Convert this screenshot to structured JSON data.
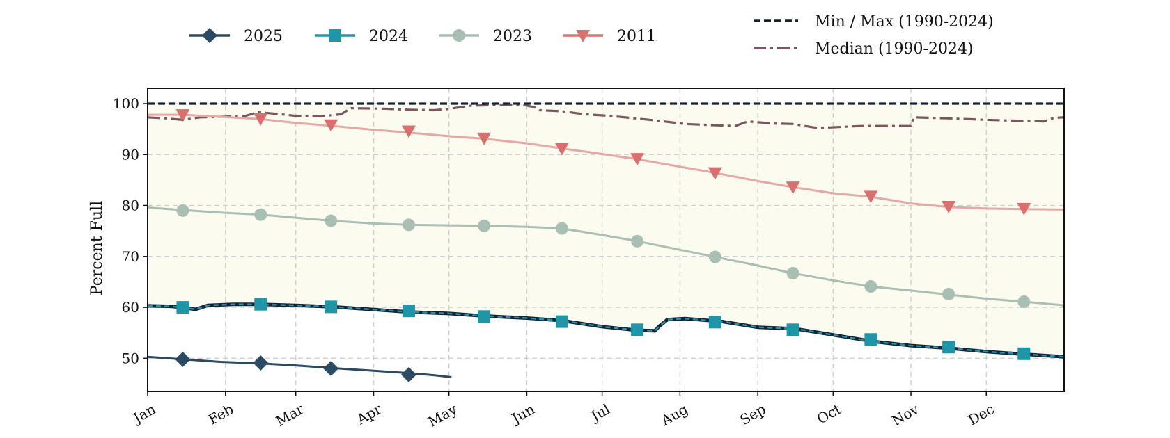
{
  "chart_data": {
    "type": "line",
    "title": "",
    "xlabel": "",
    "ylabel": "Percent Full",
    "ylim": [
      43.5,
      103
    ],
    "xlim": [
      1,
      366
    ],
    "yticks": [
      50,
      60,
      70,
      80,
      90,
      100
    ],
    "grid": true,
    "legend_placement": "top",
    "months": [
      {
        "label": "Jan",
        "day": 1
      },
      {
        "label": "Feb",
        "day": 32
      },
      {
        "label": "Mar",
        "day": 60
      },
      {
        "label": "Apr",
        "day": 91
      },
      {
        "label": "May",
        "day": 121
      },
      {
        "label": "Jun",
        "day": 152
      },
      {
        "label": "Jul",
        "day": 182
      },
      {
        "label": "Aug",
        "day": 213
      },
      {
        "label": "Sep",
        "day": 244
      },
      {
        "label": "Oct",
        "day": 274
      },
      {
        "label": "Nov",
        "day": 305
      },
      {
        "label": "Dec",
        "day": 335
      }
    ],
    "band": {
      "name": "Min / Max (1990-2024)",
      "fill_color": "#fbfbef",
      "color": "#142235",
      "max": [
        [
          1,
          100
        ],
        [
          366,
          100
        ]
      ],
      "min": [
        [
          1,
          60.3
        ],
        [
          10,
          60.2
        ],
        [
          15,
          60.0
        ],
        [
          20,
          59.6
        ],
        [
          25,
          60.4
        ],
        [
          35,
          60.6
        ],
        [
          45,
          60.6
        ],
        [
          60,
          60.4
        ],
        [
          75,
          60.1
        ],
        [
          90,
          59.6
        ],
        [
          105,
          59.1
        ],
        [
          121,
          58.8
        ],
        [
          135,
          58.3
        ],
        [
          152,
          57.9
        ],
        [
          166,
          57.4
        ],
        [
          182,
          56.2
        ],
        [
          196,
          55.5
        ],
        [
          203,
          55.4
        ],
        [
          205,
          56.4
        ],
        [
          208,
          57.6
        ],
        [
          215,
          57.8
        ],
        [
          230,
          57.2
        ],
        [
          244,
          56.1
        ],
        [
          259,
          55.8
        ],
        [
          274,
          54.6
        ],
        [
          290,
          53.3
        ],
        [
          305,
          52.5
        ],
        [
          320,
          52.0
        ],
        [
          335,
          51.3
        ],
        [
          350,
          50.8
        ],
        [
          366,
          50.3
        ]
      ]
    },
    "series": [
      {
        "name": "Median (1990-2024)",
        "color": "#7a5660",
        "dash": "dashdot",
        "marker": "none",
        "points": [
          [
            1,
            97.3
          ],
          [
            8,
            97.1
          ],
          [
            15,
            96.8
          ],
          [
            22,
            97.3
          ],
          [
            30,
            97.4
          ],
          [
            40,
            97.6
          ],
          [
            45,
            98.3
          ],
          [
            52,
            98.0
          ],
          [
            60,
            97.6
          ],
          [
            70,
            97.5
          ],
          [
            78,
            97.9
          ],
          [
            82,
            99.1
          ],
          [
            95,
            99.0
          ],
          [
            105,
            98.8
          ],
          [
            115,
            98.7
          ],
          [
            120,
            98.9
          ],
          [
            130,
            99.6
          ],
          [
            140,
            99.7
          ],
          [
            150,
            99.8
          ],
          [
            155,
            99.3
          ],
          [
            157,
            98.7
          ],
          [
            166,
            98.5
          ],
          [
            175,
            97.9
          ],
          [
            185,
            97.6
          ],
          [
            195,
            97.1
          ],
          [
            205,
            96.6
          ],
          [
            215,
            96.0
          ],
          [
            225,
            95.8
          ],
          [
            235,
            95.6
          ],
          [
            240,
            96.5
          ],
          [
            250,
            96.1
          ],
          [
            258,
            96.0
          ],
          [
            268,
            95.2
          ],
          [
            276,
            95.4
          ],
          [
            285,
            95.6
          ],
          [
            295,
            95.6
          ],
          [
            305,
            95.6
          ],
          [
            306,
            97.3
          ],
          [
            320,
            97.1
          ],
          [
            335,
            96.8
          ],
          [
            350,
            96.6
          ],
          [
            358,
            96.5
          ],
          [
            362,
            97.2
          ],
          [
            366,
            97.3
          ]
        ]
      },
      {
        "name": "2011",
        "color": "#d9706d",
        "line_color": "#e5a8a3",
        "marker": "triangle-down",
        "points": [
          [
            1,
            97.8
          ],
          [
            15,
            97.8
          ],
          [
            30,
            97.4
          ],
          [
            45,
            97.0
          ],
          [
            60,
            96.2
          ],
          [
            75,
            95.6
          ],
          [
            90,
            94.9
          ],
          [
            105,
            94.3
          ],
          [
            121,
            93.6
          ],
          [
            135,
            93.1
          ],
          [
            152,
            92.2
          ],
          [
            166,
            91.2
          ],
          [
            182,
            90.1
          ],
          [
            196,
            89.1
          ],
          [
            213,
            87.6
          ],
          [
            227,
            86.4
          ],
          [
            244,
            84.8
          ],
          [
            258,
            83.6
          ],
          [
            274,
            82.4
          ],
          [
            289,
            81.7
          ],
          [
            305,
            80.4
          ],
          [
            320,
            79.7
          ],
          [
            335,
            79.4
          ],
          [
            350,
            79.3
          ],
          [
            366,
            79.2
          ]
        ],
        "markers": [
          [
            15,
            97.8
          ],
          [
            46,
            97.0
          ],
          [
            74,
            95.8
          ],
          [
            105,
            94.6
          ],
          [
            135,
            93.2
          ],
          [
            166,
            91.2
          ],
          [
            196,
            89.2
          ],
          [
            227,
            86.4
          ],
          [
            258,
            83.6
          ],
          [
            289,
            81.8
          ],
          [
            320,
            79.8
          ],
          [
            350,
            79.4
          ]
        ]
      },
      {
        "name": "2023",
        "color": "#a9bfb4",
        "marker": "circle",
        "points": [
          [
            1,
            79.6
          ],
          [
            15,
            79.1
          ],
          [
            30,
            78.6
          ],
          [
            46,
            78.2
          ],
          [
            60,
            77.6
          ],
          [
            74,
            77.0
          ],
          [
            90,
            76.5
          ],
          [
            105,
            76.2
          ],
          [
            121,
            76.1
          ],
          [
            135,
            76.0
          ],
          [
            152,
            75.8
          ],
          [
            166,
            75.5
          ],
          [
            182,
            74.2
          ],
          [
            196,
            73.0
          ],
          [
            213,
            71.3
          ],
          [
            227,
            69.9
          ],
          [
            244,
            68.2
          ],
          [
            258,
            66.7
          ],
          [
            274,
            65.3
          ],
          [
            289,
            64.1
          ],
          [
            305,
            63.3
          ],
          [
            320,
            62.5
          ],
          [
            335,
            61.7
          ],
          [
            350,
            61.1
          ],
          [
            366,
            60.4
          ]
        ],
        "markers": [
          [
            15,
            79.0
          ],
          [
            46,
            78.2
          ],
          [
            74,
            77.0
          ],
          [
            105,
            76.2
          ],
          [
            135,
            76.0
          ],
          [
            166,
            75.5
          ],
          [
            196,
            73.0
          ],
          [
            227,
            69.9
          ],
          [
            258,
            66.7
          ],
          [
            289,
            64.1
          ],
          [
            320,
            62.6
          ],
          [
            350,
            61.1
          ]
        ]
      },
      {
        "name": "2024",
        "color": "#1f96a7",
        "marker": "square",
        "points": [
          [
            1,
            60.3
          ],
          [
            10,
            60.2
          ],
          [
            15,
            60.0
          ],
          [
            20,
            59.6
          ],
          [
            25,
            60.4
          ],
          [
            35,
            60.6
          ],
          [
            45,
            60.6
          ],
          [
            60,
            60.4
          ],
          [
            75,
            60.1
          ],
          [
            90,
            59.6
          ],
          [
            105,
            59.1
          ],
          [
            121,
            58.8
          ],
          [
            135,
            58.3
          ],
          [
            152,
            57.9
          ],
          [
            166,
            57.4
          ],
          [
            182,
            56.2
          ],
          [
            196,
            55.5
          ],
          [
            203,
            55.4
          ],
          [
            205,
            56.4
          ],
          [
            208,
            57.6
          ],
          [
            215,
            57.8
          ],
          [
            230,
            57.2
          ],
          [
            244,
            56.1
          ],
          [
            259,
            55.8
          ],
          [
            274,
            54.6
          ],
          [
            290,
            53.3
          ],
          [
            305,
            52.5
          ],
          [
            320,
            52.0
          ],
          [
            335,
            51.3
          ],
          [
            350,
            50.8
          ],
          [
            366,
            50.3
          ]
        ],
        "markers": [
          [
            15,
            60.0
          ],
          [
            46,
            60.6
          ],
          [
            74,
            60.1
          ],
          [
            105,
            59.3
          ],
          [
            135,
            58.2
          ],
          [
            166,
            57.2
          ],
          [
            196,
            55.6
          ],
          [
            227,
            57.1
          ],
          [
            258,
            55.6
          ],
          [
            289,
            53.7
          ],
          [
            320,
            52.2
          ],
          [
            350,
            50.9
          ]
        ]
      },
      {
        "name": "2025",
        "color": "#2b4a63",
        "marker": "diamond",
        "points": [
          [
            1,
            50.3
          ],
          [
            15,
            49.8
          ],
          [
            30,
            49.3
          ],
          [
            46,
            49.0
          ],
          [
            60,
            48.6
          ],
          [
            74,
            48.1
          ],
          [
            90,
            47.6
          ],
          [
            105,
            47.1
          ],
          [
            115,
            46.7
          ],
          [
            122,
            46.3
          ]
        ],
        "markers": [
          [
            15,
            49.8
          ],
          [
            46,
            49.1
          ],
          [
            74,
            48.0
          ],
          [
            105,
            46.8
          ]
        ]
      }
    ]
  }
}
